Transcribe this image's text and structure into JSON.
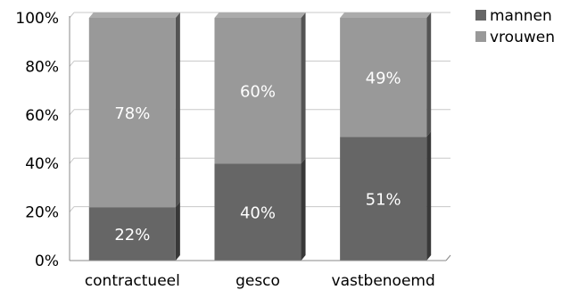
{
  "chart_data": {
    "type": "bar",
    "stacked": true,
    "percent": true,
    "categories": [
      "contractueel",
      "gesco",
      "vastbenoemd"
    ],
    "series": [
      {
        "name": "mannen",
        "values": [
          22,
          40,
          51
        ],
        "color": "#666666",
        "labels": [
          "22%",
          "40%",
          "51%"
        ]
      },
      {
        "name": "vrouwen",
        "values": [
          78,
          60,
          49
        ],
        "color": "#999999",
        "labels": [
          "78%",
          "60%",
          "49%"
        ]
      }
    ],
    "yticks": [
      "0%",
      "20%",
      "40%",
      "60%",
      "80%",
      "100%"
    ],
    "ylim": [
      0,
      100
    ],
    "grid": true,
    "legend": "top-right",
    "title": "",
    "xlabel": "",
    "ylabel": ""
  }
}
